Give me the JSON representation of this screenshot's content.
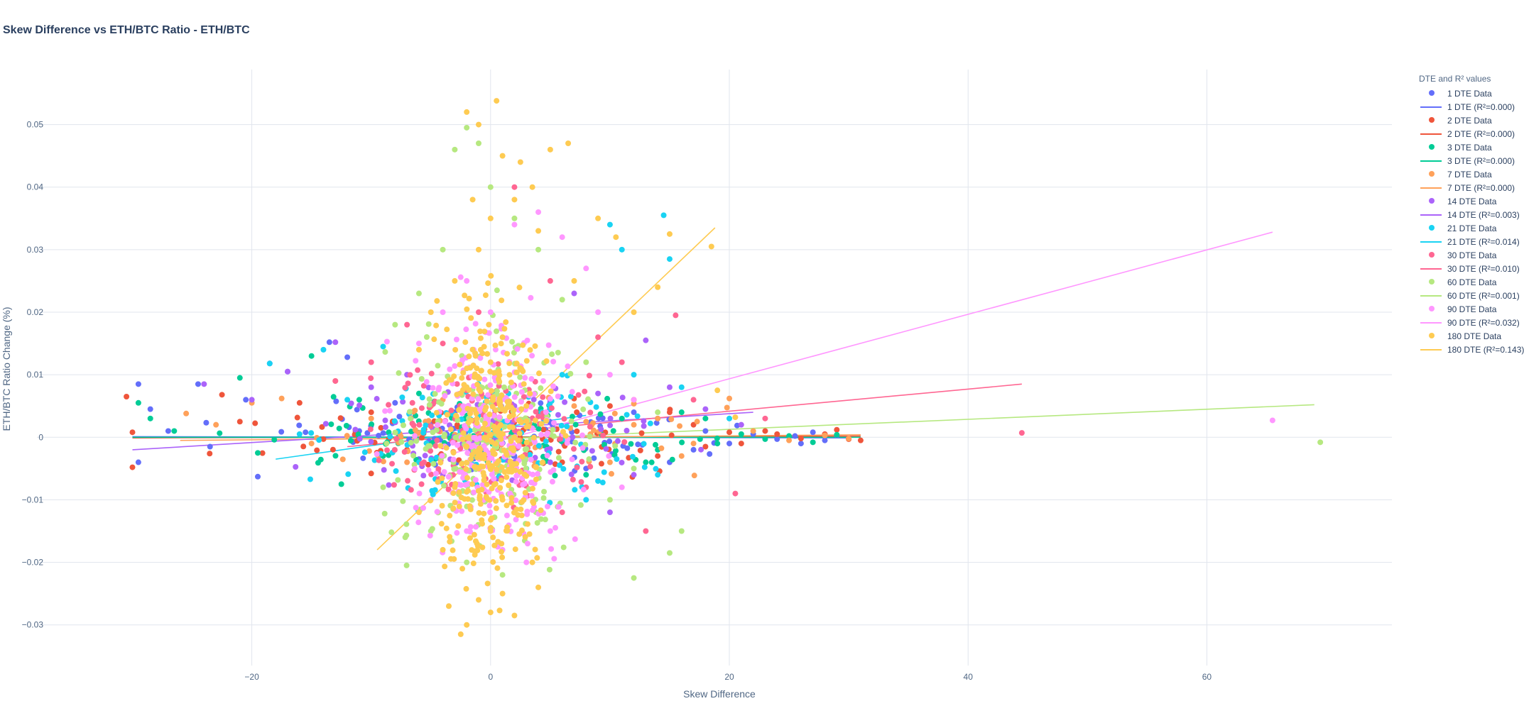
{
  "chart_data": {
    "type": "scatter",
    "title": "Skew Difference vs ETH/BTC Ratio - ETH/BTC",
    "xlabel": "Skew Difference",
    "ylabel": "ETH/BTC Ratio Change (%)",
    "xlim": [
      -38,
      75.5
    ],
    "ylim": [
      -0.0365,
      0.0588
    ],
    "xticks": [
      -20,
      0,
      20,
      40,
      60
    ],
    "yticks": [
      -0.03,
      -0.02,
      -0.01,
      0,
      0.01,
      0.02,
      0.03,
      0.04,
      0.05
    ],
    "grid": true,
    "legend_position": "right",
    "legend_title": "DTE and R² values",
    "series": [
      {
        "name": "1 DTE Data",
        "fit_name": "1 DTE (R²=0.000)",
        "color": "#636efa",
        "r2": 0.0,
        "fit": [
          [
            -30,
            0.0001
          ],
          [
            30,
            -0.0001
          ]
        ],
        "points": [
          [
            -29.5,
            0.0085
          ],
          [
            -28.5,
            0.0045
          ],
          [
            -29.5,
            -0.004
          ],
          [
            -27,
            0.001
          ],
          [
            -24.5,
            0.0085
          ],
          [
            -23.5,
            -0.0015
          ],
          [
            -20.5,
            0.006
          ],
          [
            -19.5,
            -0.0063
          ],
          [
            -18.5,
            0.0118
          ],
          [
            -17,
            0.0105
          ],
          [
            -15.5,
            0.0008
          ],
          [
            -13.5,
            0.0152
          ],
          [
            -12,
            0.0128
          ],
          [
            -11,
            0.001
          ],
          [
            -8,
            0.0055
          ],
          [
            -6,
            -0.0035
          ],
          [
            -3,
            0.004
          ],
          [
            2,
            -0.003
          ],
          [
            5,
            0.006
          ],
          [
            8,
            -0.005
          ],
          [
            12,
            0.004
          ],
          [
            15,
            -0.004
          ],
          [
            18,
            0.001
          ],
          [
            20,
            -0.001
          ],
          [
            22,
            0.0005
          ],
          [
            24,
            -0.0003
          ],
          [
            25.5,
            0.0002
          ],
          [
            26,
            -0.001
          ],
          [
            27,
            0.0008
          ],
          [
            28,
            -0.0005
          ],
          [
            29,
            0.0003
          ],
          [
            30,
            -0.0002
          ],
          [
            14,
            0.003
          ],
          [
            17,
            -0.002
          ]
        ]
      },
      {
        "name": "2 DTE Data",
        "fit_name": "2 DTE (R²=0.000)",
        "color": "#ef553b",
        "r2": 0.0,
        "fit": [
          [
            -30,
            -0.0001
          ],
          [
            31,
            0.0002
          ]
        ],
        "points": [
          [
            -30.5,
            0.0065
          ],
          [
            -30,
            -0.0048
          ],
          [
            -30,
            0.0008
          ],
          [
            -22.5,
            0.0068
          ],
          [
            -21,
            0.0025
          ],
          [
            -16,
            0.0055
          ],
          [
            -14,
            -0.0003
          ],
          [
            -10,
            0.004
          ],
          [
            -7,
            -0.002
          ],
          [
            -5,
            0.005
          ],
          [
            3,
            0.003
          ],
          [
            6,
            -0.004
          ],
          [
            10,
            0.005
          ],
          [
            14,
            -0.003
          ],
          [
            17,
            0.002
          ],
          [
            20,
            0.0008
          ],
          [
            21,
            -0.001
          ],
          [
            23,
            0.001
          ],
          [
            24,
            0.0005
          ],
          [
            26,
            -0.0002
          ],
          [
            28,
            0.0005
          ],
          [
            29,
            0.0012
          ],
          [
            30,
            -0.0003
          ],
          [
            31,
            -0.0005
          ],
          [
            15,
            0.004
          ],
          [
            18,
            -0.0015
          ],
          [
            12,
            0.006
          ]
        ]
      },
      {
        "name": "3 DTE Data",
        "fit_name": "3 DTE (R²=0.000)",
        "color": "#00cc96",
        "r2": 0.0,
        "fit": [
          [
            -30,
            0.0
          ],
          [
            31,
            0.0
          ]
        ],
        "points": [
          [
            -29.5,
            0.0055
          ],
          [
            -28.5,
            0.003
          ],
          [
            -26.5,
            0.001
          ],
          [
            -21,
            0.0095
          ],
          [
            -19.5,
            -0.0025
          ],
          [
            -15,
            0.013
          ],
          [
            -12.5,
            -0.0075
          ],
          [
            -11,
            0.006
          ],
          [
            -9,
            -0.003
          ],
          [
            -6,
            0.007
          ],
          [
            -3,
            -0.005
          ],
          [
            4,
            0.004
          ],
          [
            8,
            -0.006
          ],
          [
            11,
            0.003
          ],
          [
            14,
            -0.002
          ],
          [
            16,
            0.004
          ],
          [
            19,
            -0.001
          ],
          [
            21,
            0.0005
          ],
          [
            23,
            -0.0003
          ],
          [
            25,
            0.0002
          ],
          [
            27,
            -0.0008
          ],
          [
            29,
            0.0004
          ],
          [
            18,
            0.003
          ],
          [
            13,
            -0.004
          ]
        ]
      },
      {
        "name": "7 DTE Data",
        "fit_name": "7 DTE (R²=0.000)",
        "color": "#ffa15a",
        "r2": 0.0,
        "fit": [
          [
            -26,
            -0.0005
          ],
          [
            31,
            0.0004
          ]
        ],
        "points": [
          [
            -25.5,
            0.0038
          ],
          [
            -23,
            0.002
          ],
          [
            -20,
            0.0055
          ],
          [
            -17.5,
            0.0062
          ],
          [
            -15,
            -0.001
          ],
          [
            -13,
            0.009
          ],
          [
            -10,
            0.003
          ],
          [
            -7,
            -0.004
          ],
          [
            -4,
            0.006
          ],
          [
            3,
            -0.003
          ],
          [
            7,
            0.005
          ],
          [
            10,
            -0.004
          ],
          [
            14,
            0.003
          ],
          [
            17,
            -0.001
          ],
          [
            20,
            0.0062
          ],
          [
            22,
            0.001
          ],
          [
            25,
            -0.0005
          ],
          [
            28,
            0.0003
          ],
          [
            30,
            -0.0002
          ],
          [
            12,
            0.002
          ],
          [
            16,
            -0.003
          ]
        ]
      },
      {
        "name": "14 DTE Data",
        "fit_name": "14 DTE (R²=0.003)",
        "color": "#ab63fa",
        "r2": 0.003,
        "fit": [
          [
            -30,
            -0.002
          ],
          [
            22,
            0.004
          ]
        ],
        "points": [
          [
            -24,
            0.0085
          ],
          [
            -20,
            0.006
          ],
          [
            -17,
            0.0105
          ],
          [
            -13,
            0.0152
          ],
          [
            -10,
            0.008
          ],
          [
            -7,
            0.01
          ],
          [
            -4,
            -0.006
          ],
          [
            2,
            0.005
          ],
          [
            5,
            -0.004
          ],
          [
            9,
            0.007
          ],
          [
            12,
            -0.006
          ],
          [
            15,
            0.008
          ],
          [
            18,
            0.0045
          ],
          [
            21,
            0.002
          ],
          [
            13,
            0.0155
          ],
          [
            10,
            -0.012
          ],
          [
            7,
            0.023
          ]
        ]
      },
      {
        "name": "21 DTE Data",
        "fit_name": "21 DTE (R²=0.014)",
        "color": "#19d3f3",
        "r2": 0.014,
        "fit": [
          [
            -18,
            -0.0035
          ],
          [
            8,
            0.0035
          ]
        ],
        "points": [
          [
            -18.5,
            0.0118
          ],
          [
            -16,
            0.0005
          ],
          [
            -14,
            0.014
          ],
          [
            -12,
            0.006
          ],
          [
            -9,
            0.0145
          ],
          [
            -6,
            -0.004
          ],
          [
            -2,
            0.008
          ],
          [
            3,
            -0.005
          ],
          [
            6,
            0.01
          ],
          [
            9,
            -0.007
          ],
          [
            12,
            0.01
          ],
          [
            14,
            -0.006
          ],
          [
            15,
            0.0285
          ],
          [
            14.5,
            0.0355
          ],
          [
            10,
            0.034
          ],
          [
            11,
            0.03
          ],
          [
            16,
            0.008
          ],
          [
            20,
            0.003
          ],
          [
            8,
            -0.01
          ]
        ]
      },
      {
        "name": "30 DTE Data",
        "fit_name": "30 DTE (R²=0.010)",
        "color": "#ff6692",
        "r2": 0.01,
        "fit": [
          [
            -12,
            -0.0015
          ],
          [
            44.5,
            0.0085
          ]
        ],
        "points": [
          [
            -13,
            0.009
          ],
          [
            -10,
            0.012
          ],
          [
            -7,
            0.018
          ],
          [
            -4,
            0.015
          ],
          [
            -1,
            0.02
          ],
          [
            2,
            0.04
          ],
          [
            5,
            0.025
          ],
          [
            8,
            -0.008
          ],
          [
            11,
            0.012
          ],
          [
            13,
            -0.015
          ],
          [
            15.5,
            0.0195
          ],
          [
            17,
            0.006
          ],
          [
            20.5,
            -0.009
          ],
          [
            23,
            0.003
          ],
          [
            44.5,
            0.0007
          ],
          [
            6,
            -0.012
          ],
          [
            9,
            0.016
          ]
        ]
      },
      {
        "name": "60 DTE Data",
        "fit_name": "60 DTE (R²=0.001)",
        "color": "#b6e880",
        "r2": 0.001,
        "fit": [
          [
            -2,
            -0.0005
          ],
          [
            69,
            0.0052
          ]
        ],
        "points": [
          [
            -8,
            0.018
          ],
          [
            -6,
            0.023
          ],
          [
            -4,
            0.03
          ],
          [
            -3,
            0.046
          ],
          [
            -2,
            0.0495
          ],
          [
            -1,
            0.047
          ],
          [
            0,
            0.04
          ],
          [
            2,
            0.035
          ],
          [
            4,
            0.03
          ],
          [
            6,
            0.022
          ],
          [
            8,
            0.012
          ],
          [
            10,
            -0.01
          ],
          [
            12,
            -0.0225
          ],
          [
            15,
            -0.0185
          ],
          [
            16,
            -0.015
          ],
          [
            -9,
            -0.008
          ],
          [
            -5,
            -0.015
          ],
          [
            -2,
            -0.02
          ],
          [
            1,
            -0.022
          ],
          [
            69.5,
            -0.0008
          ],
          [
            14,
            0.004
          ],
          [
            12,
            -0.005
          ]
        ]
      },
      {
        "name": "90 DTE Data",
        "fit_name": "90 DTE (R²=0.032)",
        "color": "#ff97ff",
        "r2": 0.032,
        "fit": [
          [
            -3,
            -0.0025
          ],
          [
            65.5,
            0.0328
          ]
        ],
        "points": [
          [
            -6,
            0.015
          ],
          [
            -4,
            0.02
          ],
          [
            -2,
            0.025
          ],
          [
            0,
            0.02
          ],
          [
            2,
            0.034
          ],
          [
            4,
            0.036
          ],
          [
            6,
            0.032
          ],
          [
            8,
            0.027
          ],
          [
            10,
            0.01
          ],
          [
            12,
            0.006
          ],
          [
            -5,
            -0.01
          ],
          [
            -2,
            -0.015
          ],
          [
            1,
            -0.018
          ],
          [
            3,
            -0.02
          ],
          [
            5,
            -0.015
          ],
          [
            65.5,
            0.0027
          ],
          [
            9,
            0.02
          ],
          [
            11,
            -0.008
          ]
        ]
      },
      {
        "name": "180 DTE Data",
        "fit_name": "180 DTE (R²=0.143)",
        "color": "#fecb52",
        "r2": 0.143,
        "fit": [
          [
            -9.5,
            -0.018
          ],
          [
            18.8,
            0.0335
          ]
        ],
        "points": [
          [
            -2,
            0.052
          ],
          [
            0.5,
            0.0538
          ],
          [
            -1,
            0.05
          ],
          [
            1,
            0.045
          ],
          [
            2.5,
            0.044
          ],
          [
            3.5,
            0.04
          ],
          [
            5,
            0.046
          ],
          [
            6.5,
            0.047
          ],
          [
            -1.5,
            0.038
          ],
          [
            0,
            0.035
          ],
          [
            2,
            0.038
          ],
          [
            4,
            0.033
          ],
          [
            7,
            0.025
          ],
          [
            9,
            0.035
          ],
          [
            10.5,
            0.032
          ],
          [
            12,
            0.02
          ],
          [
            14,
            0.024
          ],
          [
            15,
            0.0325
          ],
          [
            18.5,
            0.0305
          ],
          [
            19,
            0.0075
          ],
          [
            20.5,
            0.0032
          ],
          [
            -6,
            0.014
          ],
          [
            -5,
            0.02
          ],
          [
            -3,
            0.025
          ],
          [
            -1,
            0.03
          ],
          [
            1,
            -0.025
          ],
          [
            0,
            -0.028
          ],
          [
            -1,
            -0.026
          ],
          [
            -2,
            -0.03
          ],
          [
            -2.5,
            -0.0315
          ],
          [
            -3.5,
            -0.027
          ],
          [
            2,
            -0.0285
          ],
          [
            4,
            -0.024
          ],
          [
            3.5,
            -0.02
          ],
          [
            -4,
            -0.018
          ],
          [
            -6,
            -0.012
          ],
          [
            0,
            -0.015
          ],
          [
            1,
            -0.01
          ],
          [
            -1,
            -0.005
          ],
          [
            2,
            0.0
          ],
          [
            3,
            0.005
          ],
          [
            -2,
            0.008
          ],
          [
            0,
            0.012
          ],
          [
            1,
            0.016
          ],
          [
            -3,
            -0.008
          ]
        ]
      }
    ]
  }
}
